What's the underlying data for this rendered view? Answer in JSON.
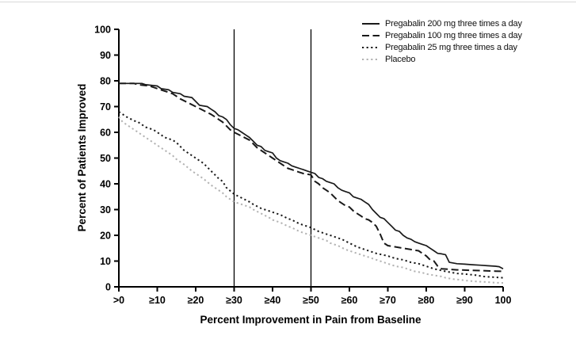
{
  "chart_data": {
    "type": "line",
    "title": "",
    "xlabel": "Percent Improvement in Pain from Baseline",
    "ylabel": "Percent of Patients Improved",
    "xlim": [
      0,
      100
    ],
    "ylim": [
      0,
      100
    ],
    "grid": false,
    "legend_position": "top-right",
    "x_tick_labels": [
      ">0",
      "≥10",
      "≥20",
      "≥30",
      "≥40",
      "≥50",
      "≥60",
      "≥70",
      "≥80",
      "≥90",
      "100"
    ],
    "y_tick_values": [
      0,
      10,
      20,
      30,
      40,
      50,
      60,
      70,
      80,
      90,
      100
    ],
    "reference_lines_x": [
      30,
      50
    ],
    "axis_color": "#000000",
    "colors": {
      "pregabalin": "#1a1a1a",
      "placebo": "#b3b3b3"
    },
    "x_decades": [
      0,
      10,
      20,
      30,
      40,
      50,
      60,
      70,
      80,
      90,
      100
    ],
    "series": [
      {
        "name": "Pregabalin 200 mg three times a day",
        "line_style": "solid",
        "color": "#1a1a1a",
        "decade_values": [
          79,
          78,
          72,
          61.5,
          52,
          44.5,
          36.5,
          25,
          16,
          8.8,
          7
        ],
        "points": [
          [
            0,
            79
          ],
          [
            6,
            79
          ],
          [
            7,
            78.5
          ],
          [
            10,
            78
          ],
          [
            11,
            77
          ],
          [
            13,
            76.5
          ],
          [
            14,
            75.5
          ],
          [
            16,
            75
          ],
          [
            17,
            74
          ],
          [
            19,
            73.5
          ],
          [
            20,
            72
          ],
          [
            21,
            70.5
          ],
          [
            23,
            70
          ],
          [
            24,
            69
          ],
          [
            25,
            68
          ],
          [
            26,
            66.5
          ],
          [
            27,
            66
          ],
          [
            28,
            65
          ],
          [
            29,
            63
          ],
          [
            30,
            61.5
          ],
          [
            31,
            61
          ],
          [
            32,
            60
          ],
          [
            33,
            59
          ],
          [
            34,
            58
          ],
          [
            35,
            56.5
          ],
          [
            36,
            55
          ],
          [
            37,
            54.5
          ],
          [
            38,
            53
          ],
          [
            39,
            52.5
          ],
          [
            40,
            52
          ],
          [
            41,
            50
          ],
          [
            42,
            49
          ],
          [
            43,
            48.5
          ],
          [
            44,
            48
          ],
          [
            45,
            47
          ],
          [
            46,
            46.5
          ],
          [
            47,
            46
          ],
          [
            48,
            45.5
          ],
          [
            49,
            45
          ],
          [
            50,
            44.5
          ],
          [
            51,
            44
          ],
          [
            52,
            42.5
          ],
          [
            53,
            42
          ],
          [
            54,
            41
          ],
          [
            55,
            40.5
          ],
          [
            56,
            40
          ],
          [
            57,
            38.5
          ],
          [
            58,
            37.5
          ],
          [
            59,
            37
          ],
          [
            60,
            36.5
          ],
          [
            61,
            35
          ],
          [
            62,
            34.5
          ],
          [
            63,
            34
          ],
          [
            64,
            33
          ],
          [
            65,
            32
          ],
          [
            66,
            30
          ],
          [
            67,
            28.5
          ],
          [
            68,
            27
          ],
          [
            69,
            26.5
          ],
          [
            70,
            25
          ],
          [
            71,
            23.5
          ],
          [
            72,
            22
          ],
          [
            73,
            21.5
          ],
          [
            74,
            20
          ],
          [
            75,
            19
          ],
          [
            76,
            18.5
          ],
          [
            77,
            17.5
          ],
          [
            78,
            17
          ],
          [
            79,
            16.5
          ],
          [
            80,
            16
          ],
          [
            81,
            15
          ],
          [
            82,
            14
          ],
          [
            83,
            13
          ],
          [
            84,
            12.8
          ],
          [
            85,
            12.5
          ],
          [
            86,
            9.5
          ],
          [
            88,
            9
          ],
          [
            90,
            8.8
          ],
          [
            92,
            8.6
          ],
          [
            94,
            8.4
          ],
          [
            96,
            8.2
          ],
          [
            98,
            8
          ],
          [
            99,
            7.8
          ],
          [
            100,
            7
          ]
        ]
      },
      {
        "name": "Pregabalin 100 mg three times a day",
        "line_style": "dashed",
        "color": "#1a1a1a",
        "decade_values": [
          79,
          77,
          70,
          60,
          50,
          43.5,
          31,
          16,
          12,
          6.5,
          6
        ],
        "points": [
          [
            0,
            79
          ],
          [
            4,
            79
          ],
          [
            5,
            78.5
          ],
          [
            8,
            78
          ],
          [
            10,
            77
          ],
          [
            12,
            76
          ],
          [
            14,
            75
          ],
          [
            15,
            74
          ],
          [
            16,
            73
          ],
          [
            18,
            71.5
          ],
          [
            20,
            70
          ],
          [
            22,
            68.5
          ],
          [
            24,
            67
          ],
          [
            25,
            66
          ],
          [
            26,
            65
          ],
          [
            27,
            64
          ],
          [
            28,
            62.5
          ],
          [
            29,
            61
          ],
          [
            30,
            60
          ],
          [
            32,
            58.5
          ],
          [
            34,
            57
          ],
          [
            35,
            55.5
          ],
          [
            36,
            54
          ],
          [
            38,
            52
          ],
          [
            40,
            50
          ],
          [
            41,
            49
          ],
          [
            42,
            48
          ],
          [
            43,
            47
          ],
          [
            44,
            46
          ],
          [
            45,
            45.5
          ],
          [
            46,
            45
          ],
          [
            47,
            44.5
          ],
          [
            48,
            44
          ],
          [
            50,
            43.5
          ],
          [
            51,
            41
          ],
          [
            52,
            40
          ],
          [
            53,
            38.5
          ],
          [
            54,
            37.5
          ],
          [
            55,
            36.5
          ],
          [
            56,
            35
          ],
          [
            57,
            33.5
          ],
          [
            58,
            32.5
          ],
          [
            59,
            31.5
          ],
          [
            60,
            31
          ],
          [
            61,
            29.5
          ],
          [
            62,
            28.5
          ],
          [
            63,
            27.5
          ],
          [
            64,
            26.5
          ],
          [
            65,
            26
          ],
          [
            66,
            25
          ],
          [
            67,
            23.5
          ],
          [
            68,
            20.5
          ],
          [
            69,
            17
          ],
          [
            70,
            16
          ],
          [
            72,
            15.5
          ],
          [
            74,
            15
          ],
          [
            76,
            14.5
          ],
          [
            78,
            14
          ],
          [
            79,
            13
          ],
          [
            80,
            12
          ],
          [
            81,
            10.5
          ],
          [
            82,
            10
          ],
          [
            83,
            8
          ],
          [
            84,
            7
          ],
          [
            86,
            6.8
          ],
          [
            88,
            6.6
          ],
          [
            90,
            6.5
          ],
          [
            92,
            6.4
          ],
          [
            94,
            6.3
          ],
          [
            96,
            6.2
          ],
          [
            98,
            6.1
          ],
          [
            100,
            6
          ]
        ]
      },
      {
        "name": "Pregabalin 25 mg three times a day",
        "line_style": "dotted",
        "color": "#1a1a1a",
        "decade_values": [
          68,
          60,
          50,
          36,
          29,
          23,
          17,
          12,
          8,
          5,
          3.5
        ],
        "points": [
          [
            0,
            68
          ],
          [
            2,
            66
          ],
          [
            4,
            64.5
          ],
          [
            5,
            64
          ],
          [
            7,
            62
          ],
          [
            9,
            61
          ],
          [
            10,
            60
          ],
          [
            12,
            58
          ],
          [
            14,
            57
          ],
          [
            15,
            56
          ],
          [
            17,
            53
          ],
          [
            19,
            51
          ],
          [
            20,
            50
          ],
          [
            21,
            49
          ],
          [
            22,
            48
          ],
          [
            24,
            45
          ],
          [
            25,
            43.5
          ],
          [
            26,
            42
          ],
          [
            27,
            41
          ],
          [
            28,
            38.5
          ],
          [
            30,
            36
          ],
          [
            32,
            34.5
          ],
          [
            34,
            33
          ],
          [
            35,
            32
          ],
          [
            37,
            30.5
          ],
          [
            39,
            29.5
          ],
          [
            40,
            29
          ],
          [
            42,
            28
          ],
          [
            44,
            26.5
          ],
          [
            45,
            26
          ],
          [
            47,
            24.5
          ],
          [
            49,
            23.5
          ],
          [
            50,
            23
          ],
          [
            52,
            21.5
          ],
          [
            54,
            20.5
          ],
          [
            55,
            20
          ],
          [
            57,
            19
          ],
          [
            58,
            18.5
          ],
          [
            60,
            17
          ],
          [
            62,
            15.5
          ],
          [
            63,
            15
          ],
          [
            65,
            14
          ],
          [
            67,
            13
          ],
          [
            70,
            12
          ],
          [
            72,
            11
          ],
          [
            74,
            10.5
          ],
          [
            76,
            9.5
          ],
          [
            78,
            9
          ],
          [
            80,
            8
          ],
          [
            82,
            7
          ],
          [
            85,
            6
          ],
          [
            88,
            5.2
          ],
          [
            90,
            5
          ],
          [
            93,
            4.5
          ],
          [
            95,
            4
          ],
          [
            100,
            3.5
          ]
        ]
      },
      {
        "name": "Placebo",
        "line_style": "dotted",
        "color": "#b3b3b3",
        "decade_values": [
          66,
          55,
          44,
          33,
          26,
          20,
          14,
          9,
          5,
          2.5,
          1.5
        ],
        "points": [
          [
            0,
            66
          ],
          [
            1,
            64
          ],
          [
            3,
            62
          ],
          [
            5,
            60
          ],
          [
            6,
            59
          ],
          [
            8,
            57
          ],
          [
            10,
            55
          ],
          [
            12,
            53
          ],
          [
            14,
            51
          ],
          [
            15,
            49.5
          ],
          [
            17,
            47.5
          ],
          [
            19,
            45
          ],
          [
            20,
            44
          ],
          [
            22,
            42
          ],
          [
            24,
            39.5
          ],
          [
            25,
            38.5
          ],
          [
            27,
            36.5
          ],
          [
            28,
            35
          ],
          [
            30,
            33
          ],
          [
            32,
            32
          ],
          [
            34,
            31
          ],
          [
            35,
            30
          ],
          [
            37,
            28.5
          ],
          [
            39,
            27
          ],
          [
            40,
            26
          ],
          [
            42,
            25
          ],
          [
            44,
            23.5
          ],
          [
            45,
            23
          ],
          [
            47,
            21.5
          ],
          [
            49,
            20.5
          ],
          [
            50,
            20
          ],
          [
            52,
            19
          ],
          [
            54,
            18
          ],
          [
            55,
            17
          ],
          [
            57,
            16
          ],
          [
            59,
            14.5
          ],
          [
            60,
            14
          ],
          [
            62,
            13
          ],
          [
            64,
            12
          ],
          [
            65,
            11.5
          ],
          [
            67,
            10.5
          ],
          [
            69,
            9.5
          ],
          [
            70,
            9
          ],
          [
            72,
            8
          ],
          [
            74,
            7.5
          ],
          [
            75,
            7
          ],
          [
            77,
            6
          ],
          [
            79,
            5.5
          ],
          [
            80,
            5
          ],
          [
            82,
            4.5
          ],
          [
            84,
            4
          ],
          [
            85,
            3.5
          ],
          [
            87,
            3
          ],
          [
            89,
            2.7
          ],
          [
            90,
            2.5
          ],
          [
            92,
            2.2
          ],
          [
            94,
            2
          ],
          [
            96,
            1.8
          ],
          [
            98,
            1.6
          ],
          [
            100,
            1.5
          ]
        ]
      }
    ]
  }
}
